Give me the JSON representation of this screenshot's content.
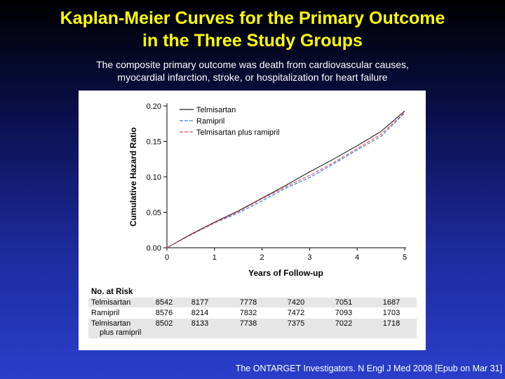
{
  "slide": {
    "title_line1": "Kaplan-Meier Curves for the Primary Outcome",
    "title_line2": "in the Three Study Groups",
    "subtitle_line1": "The composite primary outcome was death from cardiovascular causes,",
    "subtitle_line2": "myocardial infarction, stroke, or hospitalization for heart failure",
    "citation": "The ONTARGET Investigators. N Engl J Med 2008 [Epub on Mar 31]",
    "title_color": "#ffff00",
    "text_color": "#ffffff"
  },
  "chart_data": {
    "type": "line",
    "title": "",
    "xlabel": "Years of Follow-up",
    "ylabel": "Cumulative Hazard Ratio",
    "xlim": [
      0,
      5
    ],
    "ylim": [
      0,
      0.2
    ],
    "x_ticks": [
      "0",
      "1",
      "2",
      "3",
      "4",
      "5"
    ],
    "y_ticks": [
      "0.00",
      "0.05",
      "0.10",
      "0.15",
      "0.20"
    ],
    "legend_position": "top-left",
    "series": [
      {
        "name": "Telmisartan",
        "color": "#222222",
        "dash": "",
        "x": [
          0,
          0.5,
          1,
          1.5,
          2,
          2.5,
          3,
          3.5,
          4,
          4.5,
          5
        ],
        "y": [
          0,
          0.019,
          0.036,
          0.052,
          0.07,
          0.088,
          0.107,
          0.125,
          0.144,
          0.164,
          0.193
        ]
      },
      {
        "name": "Ramipril",
        "color": "#3a78d8",
        "dash": "5,2",
        "x": [
          0,
          0.5,
          1,
          1.5,
          2,
          2.5,
          3,
          3.5,
          4,
          4.5,
          5
        ],
        "y": [
          0,
          0.018,
          0.035,
          0.049,
          0.066,
          0.084,
          0.099,
          0.118,
          0.138,
          0.157,
          0.19
        ]
      },
      {
        "name": "Telmisartan plus ramipril",
        "color": "#e05050",
        "dash": "5,2",
        "x": [
          0,
          0.5,
          1,
          1.5,
          2,
          2.5,
          3,
          3.5,
          4,
          4.5,
          5
        ],
        "y": [
          0,
          0.018,
          0.035,
          0.051,
          0.069,
          0.086,
          0.102,
          0.12,
          0.14,
          0.16,
          0.191
        ]
      }
    ],
    "risk_table": {
      "header": "No. at Risk",
      "rows": [
        {
          "label": "Telmisartan",
          "values": [
            "8542",
            "8177",
            "7778",
            "7420",
            "7051",
            "1687"
          ]
        },
        {
          "label": "Ramipril",
          "values": [
            "8576",
            "8214",
            "7832",
            "7472",
            "7093",
            "1703"
          ]
        },
        {
          "label": "Telmisartan",
          "label2": "plus ramipril",
          "values": [
            "8502",
            "8133",
            "7738",
            "7375",
            "7022",
            "1718"
          ]
        }
      ]
    }
  }
}
